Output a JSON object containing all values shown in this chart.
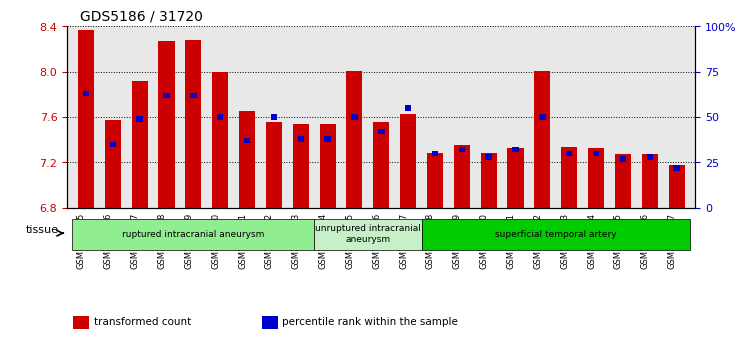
{
  "title": "GDS5186 / 31720",
  "samples": [
    "GSM1306885",
    "GSM1306886",
    "GSM1306887",
    "GSM1306888",
    "GSM1306889",
    "GSM1306890",
    "GSM1306891",
    "GSM1306892",
    "GSM1306893",
    "GSM1306894",
    "GSM1306895",
    "GSM1306896",
    "GSM1306897",
    "GSM1306898",
    "GSM1306899",
    "GSM1306900",
    "GSM1306901",
    "GSM1306902",
    "GSM1306903",
    "GSM1306904",
    "GSM1306905",
    "GSM1306906",
    "GSM1306907"
  ],
  "transformed_count": [
    8.37,
    7.57,
    7.92,
    8.27,
    8.28,
    8.0,
    7.65,
    7.56,
    7.54,
    7.54,
    8.01,
    7.56,
    7.63,
    7.28,
    7.35,
    7.28,
    7.33,
    8.01,
    7.34,
    7.33,
    7.27,
    7.27,
    7.18
  ],
  "percentile_rank": [
    63,
    35,
    49,
    62,
    62,
    50,
    37,
    50,
    38,
    38,
    50,
    42,
    55,
    30,
    32,
    28,
    32,
    50,
    30,
    30,
    27,
    28,
    22
  ],
  "ylim_left": [
    6.8,
    8.4
  ],
  "ylim_right": [
    0,
    100
  ],
  "yticks_left": [
    6.8,
    7.2,
    7.6,
    8.0,
    8.4
  ],
  "yticks_right": [
    0,
    25,
    50,
    75,
    100
  ],
  "bar_color": "#CC0000",
  "percentile_color": "#0000CC",
  "bg_color": "#E8E8E8",
  "groups": [
    {
      "label": "ruptured intracranial aneurysm",
      "start": 0,
      "end": 9,
      "color": "#90EE90"
    },
    {
      "label": "unruptured intracranial\naneurysm",
      "start": 9,
      "end": 13,
      "color": "#C8F0C8"
    },
    {
      "label": "superficial temporal artery",
      "start": 13,
      "end": 23,
      "color": "#00CC00"
    }
  ],
  "legend_items": [
    {
      "label": "transformed count",
      "color": "#CC0000"
    },
    {
      "label": "percentile rank within the sample",
      "color": "#0000CC"
    }
  ],
  "tissue_label": "tissue"
}
